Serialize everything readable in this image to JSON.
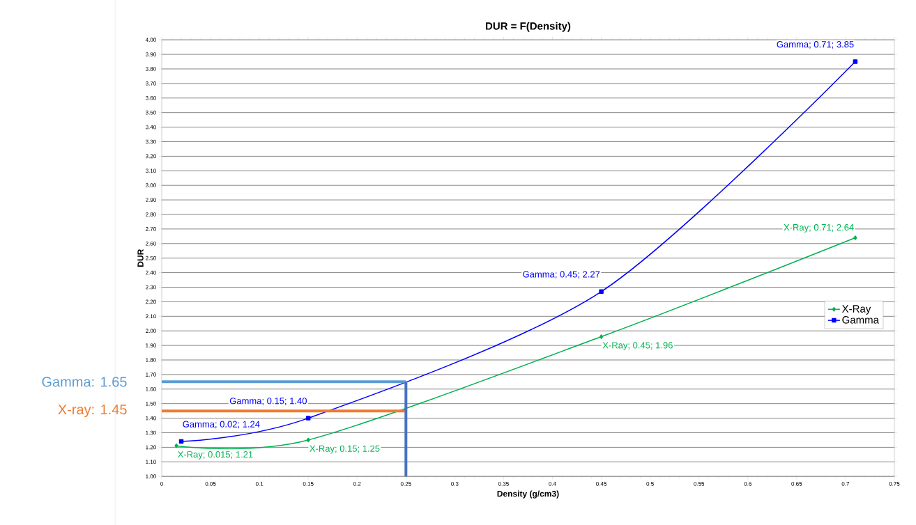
{
  "chart_data": {
    "type": "line",
    "title": "DUR = F(Density)",
    "xlabel": "Density (g/cm3)",
    "ylabel": "DUR",
    "xlim": [
      0,
      0.75
    ],
    "xticks": [
      0,
      0.05,
      0.1,
      0.15,
      0.2,
      0.25,
      0.3,
      0.35,
      0.4,
      0.45,
      0.5,
      0.55,
      0.6,
      0.65,
      0.7,
      0.75
    ],
    "ylim": [
      1.0,
      4.0
    ],
    "yticks": [
      {
        "value": 1.0,
        "label": "1.00"
      },
      {
        "value": 1.1,
        "label": "1.10"
      },
      {
        "value": 1.2,
        "label": "1.20"
      },
      {
        "value": 1.3,
        "label": "1.30"
      },
      {
        "value": 1.4,
        "label": "1.40"
      },
      {
        "value": 1.5,
        "label": "1.50"
      },
      {
        "value": 1.6,
        "label": "1.60"
      },
      {
        "value": 1.7,
        "label": "1.70"
      },
      {
        "value": 1.8,
        "label": "1.80"
      },
      {
        "value": 1.9,
        "label": "1.90"
      },
      {
        "value": 2.0,
        "label": "2.00"
      },
      {
        "value": 2.1,
        "label": "2.10"
      },
      {
        "value": 2.2,
        "label": "2.20"
      },
      {
        "value": 2.3,
        "label": "2.30"
      },
      {
        "value": 2.4,
        "label": "2.40"
      },
      {
        "value": 2.5,
        "label": "2.50"
      },
      {
        "value": 2.6,
        "label": "2.60"
      },
      {
        "value": 2.7,
        "label": "2.70"
      },
      {
        "value": 2.8,
        "label": "2.80"
      },
      {
        "value": 2.9,
        "label": "2.90"
      },
      {
        "value": 3.0,
        "label": "3.00"
      },
      {
        "value": 3.1,
        "label": "3.10"
      },
      {
        "value": 3.2,
        "label": "3.20"
      },
      {
        "value": 3.3,
        "label": "3.30"
      },
      {
        "value": 3.4,
        "label": "3.40"
      },
      {
        "value": 3.5,
        "label": "3.50"
      },
      {
        "value": 3.6,
        "label": "3.60"
      },
      {
        "value": 3.7,
        "label": "3.70"
      },
      {
        "value": 3.8,
        "label": "3.80"
      },
      {
        "value": 3.9,
        "label": "3.90"
      },
      {
        "value": 4.0,
        "label": "4.00"
      }
    ],
    "grid": "y",
    "legend": "right",
    "series": [
      {
        "name": "X-Ray",
        "color": "#00b050",
        "marker": "diamond",
        "x": [
          0.015,
          0.15,
          0.45,
          0.71
        ],
        "values": [
          1.21,
          1.25,
          1.96,
          2.64
        ],
        "value_labels": [
          "X-Ray; 0.015; 1.21",
          "X-Ray; 0.15; 1.25",
          "X-Ray; 0.45; 1.96",
          "X-Ray; 0.71; 2.64"
        ]
      },
      {
        "name": "Gamma",
        "color": "#0000ff",
        "marker": "square",
        "x": [
          0.02,
          0.15,
          0.45,
          0.71
        ],
        "values": [
          1.24,
          1.4,
          2.27,
          3.85
        ],
        "value_labels": [
          "Gamma; 0.02; 1.24",
          "Gamma; 0.15; 1.40",
          "Gamma; 0.45; 2.27",
          "Gamma; 0.71; 3.85"
        ]
      },
      {
        "color": "#5b9bd5",
        "marker": "none",
        "x": [
          0,
          0.25
        ],
        "values": [
          1.65,
          1.65
        ]
      },
      {
        "color": "#ed7d31",
        "marker": "none",
        "x": [
          0,
          0.25
        ],
        "values": [
          1.45,
          1.45
        ]
      },
      {
        "color": "#4472c4",
        "marker": "none",
        "x": [
          0.25,
          0.25
        ],
        "values": [
          1.0,
          1.65
        ]
      }
    ],
    "annotations": [
      {
        "text": "Gamma: 1.65",
        "x": 0,
        "y": 1.65
      },
      {
        "text": "X-ray: 1.45",
        "x": 0,
        "y": 1.45
      }
    ]
  }
}
